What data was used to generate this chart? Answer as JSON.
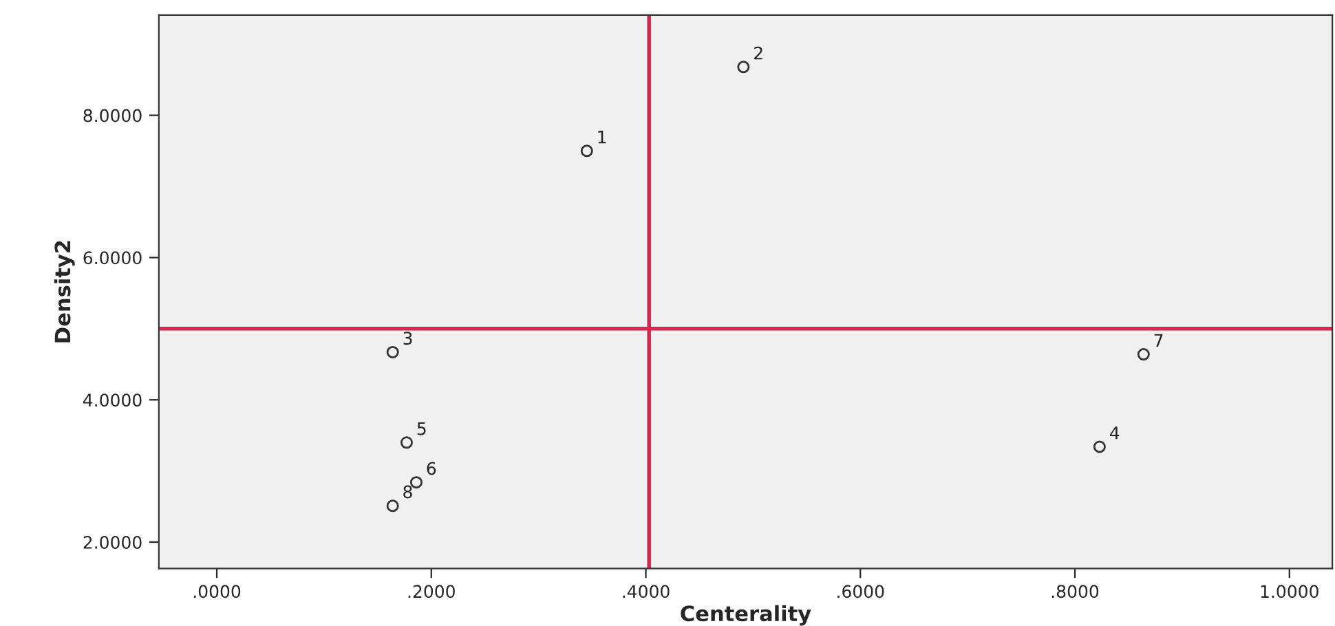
{
  "chart_data": {
    "type": "scatter",
    "xlabel": "Centerality",
    "ylabel": "Density2",
    "xlim": [
      -0.054,
      1.04
    ],
    "ylim": [
      1.63,
      9.41
    ],
    "xticks": [
      {
        "value": 0,
        "label": ".0000"
      },
      {
        "value": 0.2,
        "label": ".2000"
      },
      {
        "value": 0.4,
        "label": ".4000"
      },
      {
        "value": 0.6,
        "label": ".6000"
      },
      {
        "value": 0.8,
        "label": ".8000"
      },
      {
        "value": 1.0,
        "label": "1.0000"
      }
    ],
    "yticks": [
      {
        "value": 2,
        "label": "2.0000"
      },
      {
        "value": 4,
        "label": "4.0000"
      },
      {
        "value": 6,
        "label": "6.0000"
      },
      {
        "value": 8,
        "label": "8.0000"
      }
    ],
    "x": [
      0.345,
      0.491,
      0.164,
      0.823,
      0.177,
      0.186,
      0.864,
      0.164
    ],
    "series": [
      {
        "color": "#333333",
        "values": [
          7.5,
          8.68,
          4.67,
          3.34,
          3.4,
          2.84,
          4.64,
          2.51
        ]
      }
    ],
    "marker": "circle",
    "grid": false,
    "ref_lines": [
      {
        "axis": "x",
        "value": 0.403,
        "color": "#d6284f"
      },
      {
        "axis": "y",
        "value": 5.0,
        "color": "#d6284f"
      }
    ],
    "annotations": [
      {
        "text": "1",
        "x": 0.345,
        "y": 7.5
      },
      {
        "text": "2",
        "x": 0.491,
        "y": 8.68
      },
      {
        "text": "3",
        "x": 0.164,
        "y": 4.67
      },
      {
        "text": "4",
        "x": 0.823,
        "y": 3.34
      },
      {
        "text": "5",
        "x": 0.177,
        "y": 3.4
      },
      {
        "text": "6",
        "x": 0.186,
        "y": 2.84
      },
      {
        "text": "7",
        "x": 0.864,
        "y": 4.64
      },
      {
        "text": "8",
        "x": 0.164,
        "y": 2.51
      }
    ]
  }
}
